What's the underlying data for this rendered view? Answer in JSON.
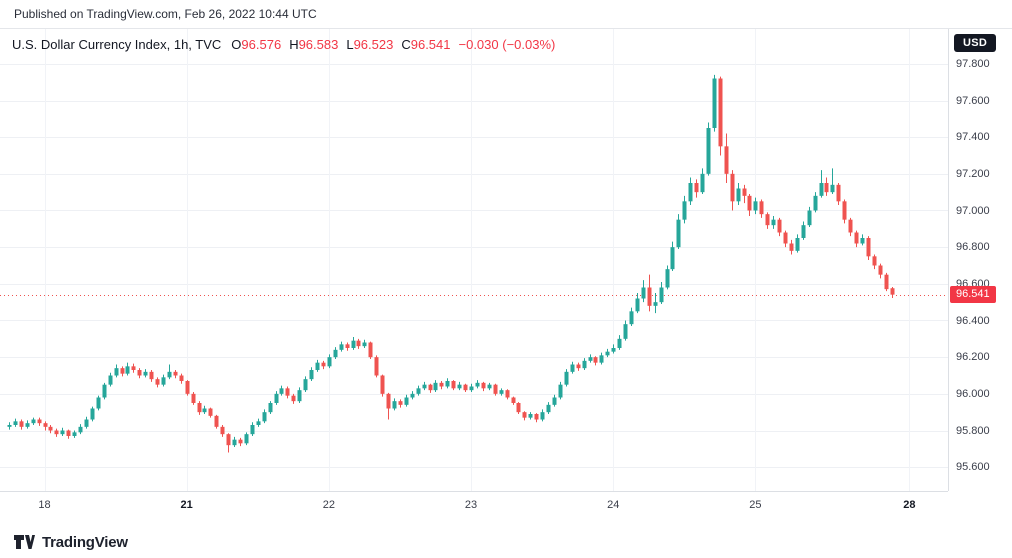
{
  "page": {
    "published_line": "Published on TradingView.com, Feb 26, 2022 10:44 UTC"
  },
  "legend": {
    "title": "U.S. Dollar Currency Index, 1h, TVC",
    "open_label": "O",
    "open_value": "96.576",
    "high_label": "H",
    "high_value": "96.583",
    "low_label": "L",
    "low_value": "96.523",
    "close_label": "C",
    "close_value": "96.541",
    "change": "−0.030 (−0.03%)"
  },
  "price_axis": {
    "currency": "USD",
    "last_price_label": "96.541"
  },
  "logo": {
    "text": "TradingView"
  },
  "ui_colors": {
    "legend_red": "#f23645",
    "badge_bg": "#f23645",
    "currency_badge_bg": "#131722"
  },
  "chart_data": {
    "type": "candlestick",
    "title": "U.S. Dollar Currency Index",
    "interval": "1h",
    "exchange": "TVC",
    "unit": "USD",
    "ylim": [
      95.47,
      97.99
    ],
    "y_ticks": [
      "97.800",
      "97.600",
      "97.400",
      "97.200",
      "97.000",
      "96.800",
      "96.600",
      "96.400",
      "96.200",
      "96.000",
      "95.800",
      "95.600"
    ],
    "last_price": 96.541,
    "price_line_color": "#ef5350",
    "colors": {
      "up": "#26a69a",
      "down": "#ef5350"
    },
    "grid": true,
    "legend_position": "top-left",
    "x_slots": 158,
    "time_ticks": [
      {
        "label": "18",
        "slot": 6,
        "bold": false
      },
      {
        "label": "21",
        "slot": 30,
        "bold": true
      },
      {
        "label": "22",
        "slot": 54,
        "bold": false
      },
      {
        "label": "23",
        "slot": 78,
        "bold": false
      },
      {
        "label": "24",
        "slot": 102,
        "bold": false
      },
      {
        "label": "25",
        "slot": 126,
        "bold": false
      },
      {
        "label": "28",
        "slot": 152,
        "bold": true
      }
    ],
    "ohlc_order": [
      "open",
      "high",
      "low",
      "close"
    ],
    "candles": [
      [
        95.82,
        95.845,
        95.805,
        95.83
      ],
      [
        95.83,
        95.865,
        95.82,
        95.85
      ],
      [
        95.85,
        95.86,
        95.805,
        95.82
      ],
      [
        95.82,
        95.855,
        95.81,
        95.84
      ],
      [
        95.84,
        95.87,
        95.83,
        95.86
      ],
      [
        95.86,
        95.87,
        95.825,
        95.84
      ],
      [
        95.84,
        95.85,
        95.8,
        95.82
      ],
      [
        95.82,
        95.83,
        95.785,
        95.8
      ],
      [
        95.8,
        95.81,
        95.765,
        95.78
      ],
      [
        95.78,
        95.815,
        95.77,
        95.8
      ],
      [
        95.8,
        95.805,
        95.755,
        95.77
      ],
      [
        95.77,
        95.8,
        95.76,
        95.79
      ],
      [
        95.79,
        95.835,
        95.78,
        95.82
      ],
      [
        95.82,
        95.875,
        95.81,
        95.86
      ],
      [
        95.86,
        95.93,
        95.85,
        95.92
      ],
      [
        95.92,
        95.99,
        95.91,
        95.98
      ],
      [
        95.98,
        96.06,
        95.97,
        96.05
      ],
      [
        96.05,
        96.115,
        96.04,
        96.1
      ],
      [
        96.1,
        96.16,
        96.09,
        96.14
      ],
      [
        96.14,
        96.15,
        96.095,
        96.11
      ],
      [
        96.11,
        96.17,
        96.1,
        96.15
      ],
      [
        96.15,
        96.165,
        96.115,
        96.13
      ],
      [
        96.13,
        96.14,
        96.085,
        96.1
      ],
      [
        96.1,
        96.135,
        96.09,
        96.12
      ],
      [
        96.12,
        96.13,
        96.065,
        96.08
      ],
      [
        96.08,
        96.09,
        96.035,
        96.05
      ],
      [
        96.05,
        96.105,
        96.04,
        96.09
      ],
      [
        96.09,
        96.16,
        96.08,
        96.12
      ],
      [
        96.12,
        96.13,
        96.085,
        96.1
      ],
      [
        96.1,
        96.11,
        96.055,
        96.07
      ],
      [
        96.07,
        96.075,
        95.99,
        96.0
      ],
      [
        96.0,
        96.01,
        95.94,
        95.95
      ],
      [
        95.95,
        95.96,
        95.885,
        95.9
      ],
      [
        95.9,
        95.935,
        95.89,
        95.92
      ],
      [
        95.92,
        95.925,
        95.87,
        95.88
      ],
      [
        95.88,
        95.885,
        95.81,
        95.82
      ],
      [
        95.82,
        95.83,
        95.765,
        95.78
      ],
      [
        95.78,
        95.785,
        95.68,
        95.72
      ],
      [
        95.72,
        95.765,
        95.71,
        95.75
      ],
      [
        95.75,
        95.76,
        95.715,
        95.73
      ],
      [
        95.73,
        95.79,
        95.72,
        95.78
      ],
      [
        95.78,
        95.845,
        95.77,
        95.83
      ],
      [
        95.83,
        95.865,
        95.82,
        95.85
      ],
      [
        95.85,
        95.915,
        95.84,
        95.9
      ],
      [
        95.9,
        95.96,
        95.89,
        95.95
      ],
      [
        95.95,
        96.015,
        95.94,
        96.0
      ],
      [
        96.0,
        96.045,
        95.99,
        96.03
      ],
      [
        96.03,
        96.04,
        95.975,
        95.99
      ],
      [
        95.99,
        96.0,
        95.945,
        95.96
      ],
      [
        95.96,
        96.035,
        95.95,
        96.02
      ],
      [
        96.02,
        96.095,
        96.01,
        96.08
      ],
      [
        96.08,
        96.145,
        96.07,
        96.13
      ],
      [
        96.13,
        96.185,
        96.12,
        96.17
      ],
      [
        96.17,
        96.18,
        96.135,
        96.15
      ],
      [
        96.15,
        96.215,
        96.14,
        96.2
      ],
      [
        96.2,
        96.255,
        96.19,
        96.24
      ],
      [
        96.24,
        96.285,
        96.23,
        96.27
      ],
      [
        96.27,
        96.28,
        96.235,
        96.25
      ],
      [
        96.25,
        96.31,
        96.24,
        96.29
      ],
      [
        96.29,
        96.3,
        96.245,
        96.26
      ],
      [
        96.26,
        96.295,
        96.25,
        96.28
      ],
      [
        96.28,
        96.285,
        96.19,
        96.2
      ],
      [
        96.2,
        96.21,
        96.09,
        96.1
      ],
      [
        96.1,
        96.105,
        95.985,
        96.0
      ],
      [
        96.0,
        96.005,
        95.86,
        95.92
      ],
      [
        95.92,
        95.975,
        95.91,
        95.96
      ],
      [
        95.96,
        95.97,
        95.925,
        95.94
      ],
      [
        95.94,
        95.995,
        95.93,
        95.98
      ],
      [
        95.98,
        96.015,
        95.97,
        96.0
      ],
      [
        96.0,
        96.045,
        95.99,
        96.03
      ],
      [
        96.03,
        96.065,
        96.02,
        96.05
      ],
      [
        96.05,
        96.055,
        96.005,
        96.02
      ],
      [
        96.02,
        96.075,
        96.01,
        96.06
      ],
      [
        96.06,
        96.07,
        96.025,
        96.04
      ],
      [
        96.04,
        96.085,
        96.03,
        96.07
      ],
      [
        96.07,
        96.075,
        96.02,
        96.03
      ],
      [
        96.03,
        96.065,
        96.02,
        96.05
      ],
      [
        96.05,
        96.055,
        96.01,
        96.02
      ],
      [
        96.02,
        96.055,
        96.01,
        96.04
      ],
      [
        96.04,
        96.075,
        96.03,
        96.06
      ],
      [
        96.06,
        96.065,
        96.015,
        96.03
      ],
      [
        96.03,
        96.06,
        96.02,
        96.05
      ],
      [
        96.05,
        96.055,
        95.99,
        96.0
      ],
      [
        96.0,
        96.03,
        95.99,
        96.02
      ],
      [
        96.02,
        96.025,
        95.97,
        95.98
      ],
      [
        95.98,
        95.985,
        95.94,
        95.95
      ],
      [
        95.95,
        95.955,
        95.89,
        95.9
      ],
      [
        95.9,
        95.905,
        95.855,
        95.87
      ],
      [
        95.87,
        95.9,
        95.86,
        95.89
      ],
      [
        95.89,
        95.895,
        95.845,
        95.86
      ],
      [
        95.86,
        95.915,
        95.85,
        95.9
      ],
      [
        95.9,
        95.955,
        95.89,
        95.94
      ],
      [
        95.94,
        95.995,
        95.93,
        95.98
      ],
      [
        95.98,
        96.065,
        95.97,
        96.05
      ],
      [
        96.05,
        96.135,
        96.04,
        96.12
      ],
      [
        96.12,
        96.175,
        96.11,
        96.16
      ],
      [
        96.16,
        96.17,
        96.125,
        96.14
      ],
      [
        96.14,
        96.195,
        96.13,
        96.18
      ],
      [
        96.18,
        96.215,
        96.17,
        96.2
      ],
      [
        96.2,
        96.205,
        96.155,
        96.17
      ],
      [
        96.17,
        96.225,
        96.16,
        96.21
      ],
      [
        96.21,
        96.245,
        96.2,
        96.23
      ],
      [
        96.23,
        96.27,
        96.22,
        96.25
      ],
      [
        96.25,
        96.32,
        96.24,
        96.3
      ],
      [
        96.3,
        96.4,
        96.29,
        96.38
      ],
      [
        96.38,
        96.47,
        96.37,
        96.45
      ],
      [
        96.45,
        96.55,
        96.44,
        96.52
      ],
      [
        96.52,
        96.62,
        96.5,
        96.58
      ],
      [
        96.58,
        96.65,
        96.45,
        96.48
      ],
      [
        96.48,
        96.55,
        96.44,
        96.5
      ],
      [
        96.5,
        96.61,
        96.49,
        96.58
      ],
      [
        96.58,
        96.7,
        96.57,
        96.68
      ],
      [
        96.68,
        96.83,
        96.67,
        96.8
      ],
      [
        96.8,
        96.98,
        96.79,
        96.95
      ],
      [
        96.95,
        97.08,
        96.93,
        97.05
      ],
      [
        97.05,
        97.18,
        97.03,
        97.15
      ],
      [
        97.15,
        97.17,
        97.07,
        97.1
      ],
      [
        97.1,
        97.23,
        97.09,
        97.2
      ],
      [
        97.2,
        97.48,
        97.19,
        97.45
      ],
      [
        97.45,
        97.74,
        97.43,
        97.72
      ],
      [
        97.72,
        97.73,
        97.3,
        97.35
      ],
      [
        97.35,
        97.42,
        97.15,
        97.2
      ],
      [
        97.2,
        97.22,
        97.0,
        97.05
      ],
      [
        97.05,
        97.15,
        97.03,
        97.12
      ],
      [
        97.12,
        97.14,
        97.04,
        97.08
      ],
      [
        97.08,
        97.09,
        96.97,
        97.0
      ],
      [
        97.0,
        97.07,
        96.98,
        97.05
      ],
      [
        97.05,
        97.06,
        96.96,
        96.98
      ],
      [
        96.98,
        96.99,
        96.9,
        96.92
      ],
      [
        96.92,
        96.97,
        96.9,
        96.95
      ],
      [
        96.95,
        96.96,
        96.86,
        96.88
      ],
      [
        96.88,
        96.89,
        96.8,
        96.82
      ],
      [
        96.82,
        96.84,
        96.76,
        96.78
      ],
      [
        96.78,
        96.87,
        96.77,
        96.85
      ],
      [
        96.85,
        96.94,
        96.84,
        96.92
      ],
      [
        96.92,
        97.02,
        96.91,
        97.0
      ],
      [
        97.0,
        97.1,
        96.99,
        97.08
      ],
      [
        97.08,
        97.22,
        97.07,
        97.15
      ],
      [
        97.15,
        97.18,
        97.08,
        97.1
      ],
      [
        97.1,
        97.23,
        97.09,
        97.14
      ],
      [
        97.14,
        97.15,
        97.03,
        97.05
      ],
      [
        97.05,
        97.06,
        96.93,
        96.95
      ],
      [
        96.95,
        96.96,
        96.86,
        96.88
      ],
      [
        96.88,
        96.89,
        96.8,
        96.82
      ],
      [
        96.82,
        96.87,
        96.81,
        96.85
      ],
      [
        96.85,
        96.86,
        96.73,
        96.75
      ],
      [
        96.75,
        96.76,
        96.68,
        96.7
      ],
      [
        96.7,
        96.71,
        96.63,
        96.65
      ],
      [
        96.65,
        96.66,
        96.56,
        96.571
      ],
      [
        96.576,
        96.583,
        96.523,
        96.541
      ]
    ]
  }
}
